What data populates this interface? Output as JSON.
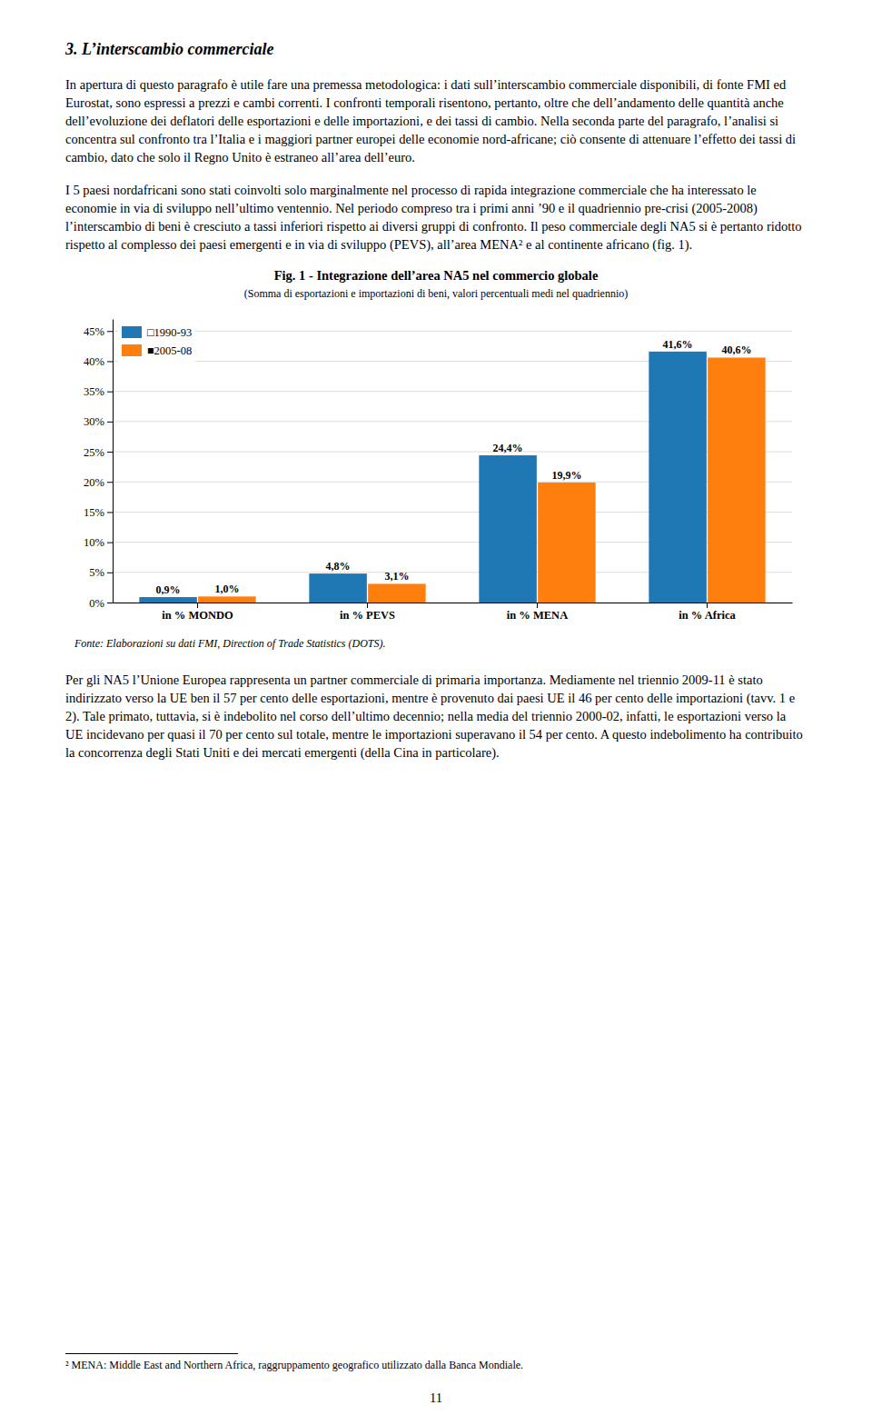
{
  "section_title": "3. L’interscambio commerciale",
  "paragraphs": [
    "In apertura di questo paragrafo è utile fare una premessa metodologica: i dati sull’interscambio commerciale disponibili, di fonte FMI ed Eurostat, sono espressi a prezzi e cambi correnti. I confronti temporali risentono, pertanto, oltre che dell’andamento delle quantità anche dell’evoluzione dei deflatori delle esportazioni e delle importazioni, e dei tassi di cambio. Nella seconda parte del paragrafo, l’analisi si concentra sul confronto tra l’Italia e i maggiori partner europei delle economie nord-africane; ciò consente di attenuare l’effetto dei tassi di cambio, dato che solo il Regno Unito è estraneo all’area dell’euro.",
    "I 5 paesi nordafricani sono stati coinvolti solo marginalmente nel processo di rapida integrazione commerciale che ha interessato le economie in via di sviluppo nell’ultimo ventennio. Nel periodo compreso tra i primi anni ’90 e il quadriennio pre-crisi (2005-2008) l’interscambio di beni è cresciuto a tassi inferiori rispetto ai diversi gruppi di confronto. Il peso commerciale degli NA5 si è pertanto ridotto rispetto al complesso dei paesi emergenti e in via di sviluppo (PEVS), all’area MENA² e al continente africano (fig. 1).",
    "Per gli NA5 l’Unione Europea rappresenta un partner commerciale di primaria importanza. Mediamente nel triennio 2009-11 è stato indirizzato verso la UE ben il 57 per cento delle esportazioni, mentre è provenuto dai paesi UE il 46 per cento delle importazioni (tavv. 1 e 2). Tale primato, tuttavia, si è indebolito nel corso dell’ultimo decennio; nella media del triennio 2000-02, infatti, le esportazioni verso la UE incidevano per quasi il 70 per cento sul totale, mentre le importazioni superavano il 54 per cento. A questo indebolimento ha contribuito la concorrenza degli Stati Uniti e dei mercati emergenti (della Cina in particolare)."
  ],
  "chart_data": {
    "type": "bar",
    "title": "Fig. 1 - Integrazione dell’area NA5 nel commercio globale",
    "subtitle": "(Somma di esportazioni e importazioni di beni, valori percentuali medi nel quadriennio)",
    "annotations": [
      "Fonte: Elaborazioni su dati FMI, Direction of Trade Statistics (DOTS)."
    ],
    "categories": [
      "in % MONDO",
      "in % PEVS",
      "in % MENA",
      "in % Africa"
    ],
    "series": [
      {
        "name": "□1990-93",
        "values": [
          0.9,
          4.8,
          24.4,
          41.6
        ],
        "value_labels": [
          "0,9%",
          "4,8%",
          "24,4%",
          "41,6%"
        ]
      },
      {
        "name": "■2005-08",
        "values": [
          1.0,
          3.1,
          19.9,
          40.6
        ],
        "value_labels": [
          "1,0%",
          "3,1%",
          "19,9%",
          "40,6%"
        ]
      }
    ],
    "ylim": [
      0,
      47
    ],
    "yticks": [
      {
        "value": 0,
        "label": "0%"
      },
      {
        "value": 5,
        "label": "5%"
      },
      {
        "value": 10,
        "label": "10%"
      },
      {
        "value": 15,
        "label": "15%"
      },
      {
        "value": 20,
        "label": "20%"
      },
      {
        "value": 25,
        "label": "25%"
      },
      {
        "value": 30,
        "label": "30%"
      },
      {
        "value": 35,
        "label": "35%"
      },
      {
        "value": 40,
        "label": "40%"
      },
      {
        "value": 45,
        "label": "45%"
      }
    ],
    "grid": true,
    "legend": "upper left",
    "data_labels": true
  },
  "footnote": "² MENA: Middle East and Northern Africa, raggruppamento geografico utilizzato dalla Banca Mondiale.",
  "page_number": "11"
}
